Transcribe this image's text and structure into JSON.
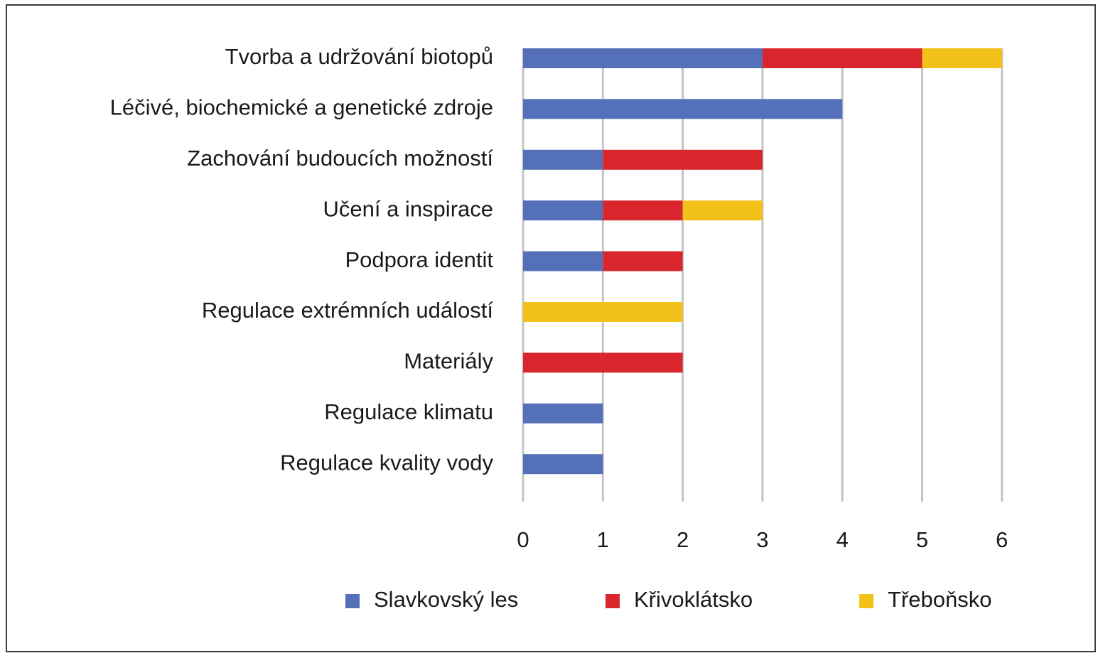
{
  "chart_data": {
    "type": "bar",
    "orientation": "horizontal",
    "stacked": true,
    "categories": [
      "Tvorba a udržování biotopů",
      "Léčivé, biochemické a genetické zdroje",
      "Zachování budoucích možností",
      "Učení a inspirace",
      "Podpora identit",
      "Regulace extrémních událostí",
      "Materiály",
      "Regulace klimatu",
      "Regulace kvality vody"
    ],
    "series": [
      {
        "name": "Slavkovský les",
        "color": "#5470b8",
        "values": [
          3,
          4,
          1,
          1,
          1,
          0,
          0,
          1,
          1
        ]
      },
      {
        "name": "Křivoklátsko",
        "color": "#d9262c",
        "values": [
          2,
          0,
          2,
          1,
          1,
          0,
          2,
          0,
          0
        ]
      },
      {
        "name": "Třeboňsko",
        "color": "#f2c21b",
        "values": [
          1,
          0,
          0,
          1,
          0,
          2,
          0,
          0,
          0
        ]
      }
    ],
    "xlim": [
      0,
      6
    ],
    "xticks": [
      "0",
      "1",
      "2",
      "3",
      "4",
      "5",
      "6"
    ],
    "grid": "vertical",
    "legend": "bottom",
    "title": "",
    "xlabel": "",
    "ylabel": ""
  }
}
